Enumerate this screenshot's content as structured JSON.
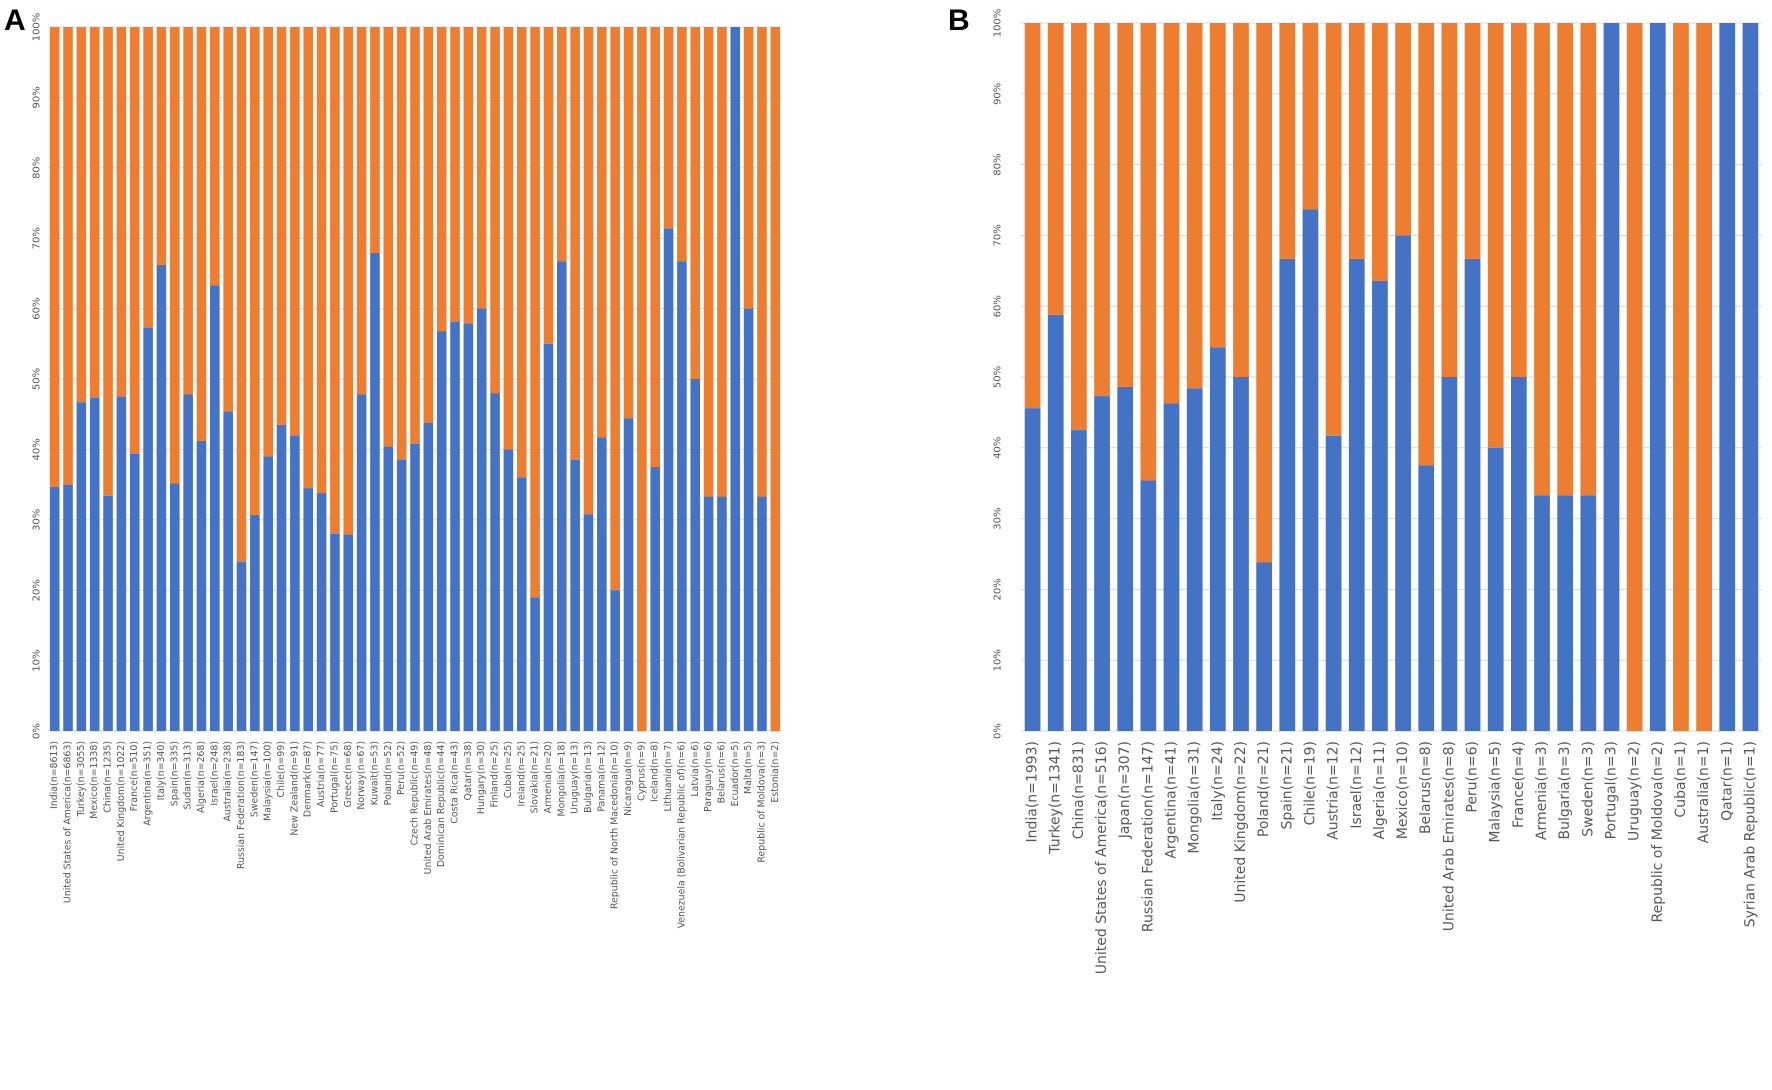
{
  "chart_data": [
    {
      "panel": "A",
      "type": "bar",
      "stacked": true,
      "percent_stacked": true,
      "ylim": [
        0,
        100
      ],
      "yticks": [
        "0%",
        "10%",
        "20%",
        "30%",
        "40%",
        "50%",
        "60%",
        "70%",
        "80%",
        "90%",
        "100%"
      ],
      "series_colors": [
        "#4472c4",
        "#ed7d31"
      ],
      "categories": [
        "India(n=8613)",
        "United States of America(n=6863)",
        "Turkey(n=3055)",
        "Mexico(n=1338)",
        "China(n=1235)",
        "United Kingdom(n=1022)",
        "France(n=510)",
        "Argentina(n=351)",
        "Italy(n=340)",
        "Spain(n=335)",
        "Sudan(n=313)",
        "Algeria(n=268)",
        "Israel(n=248)",
        "Australia(n=238)",
        "Russian Federation(n=183)",
        "Sweden(n=147)",
        "Malaysia(n=100)",
        "Chile(n=99)",
        "New Zealand(n=91)",
        "Denmark(n=87)",
        "Austria(n=77)",
        "Portugal(n=75)",
        "Greece(n=68)",
        "Norway(n=67)",
        "Kuwait(n=53)",
        "Poland(n=52)",
        "Peru(n=52)",
        "Czech Republic(n=49)",
        "United Arab Emirates(n=48)",
        "Dominican Republic(n=44)",
        "Costa Rica(n=43)",
        "Qatar(n=38)",
        "Hungary(n=30)",
        "Finland(n=25)",
        "Cuba(n=25)",
        "Ireland(n=25)",
        "Slovakia(n=21)",
        "Armenia(n=20)",
        "Mongolia(n=18)",
        "Uruguay(n=13)",
        "Bulgaria(n=13)",
        "Panama(n=12)",
        "Republic of North Macedonia(n=10)",
        "Nicaragua(n=9)",
        "Cyprus(n=9)",
        "Iceland(n=8)",
        "Lithuania(n=7)",
        "Venezuela (Bolivarian Republic of)(n=6)",
        "Latvia(n=6)",
        "Paraguay(n=6)",
        "Belarus(n=6)",
        "Ecuador(n=5)",
        "Malta(n=5)",
        "Republic of Moldova(n=3)",
        "Estonia(n=2)"
      ],
      "series": [
        {
          "name": "blue",
          "values": [
            34.7,
            35,
            46.7,
            47.3,
            33.4,
            47.5,
            39.4,
            57.3,
            66.2,
            35.2,
            47.8,
            41.2,
            63.3,
            45.4,
            24,
            30.7,
            39,
            43.5,
            41.9,
            34.5,
            33.8,
            28,
            27.9,
            47.8,
            67.9,
            40.4,
            38.5,
            40.8,
            43.8,
            56.8,
            58.1,
            57.9,
            60,
            48,
            40,
            36,
            19,
            55,
            66.7,
            38.5,
            30.8,
            41.7,
            20,
            44.4,
            0,
            37.5,
            71.4,
            66.7,
            50,
            33.3,
            33.3,
            100,
            60,
            33.3,
            0
          ]
        },
        {
          "name": "orange",
          "values": [
            65.3,
            65,
            53.3,
            52.7,
            66.6,
            52.5,
            60.6,
            42.7,
            33.8,
            64.8,
            52.2,
            58.8,
            36.7,
            54.6,
            76,
            69.3,
            61,
            56.5,
            58.1,
            65.5,
            66.2,
            72,
            72.1,
            52.2,
            32.1,
            59.6,
            61.5,
            59.2,
            56.2,
            43.2,
            41.9,
            42.1,
            40,
            52,
            60,
            64,
            81,
            45,
            33.3,
            61.5,
            69.2,
            58.3,
            80,
            55.6,
            100,
            62.5,
            28.6,
            33.3,
            50,
            66.7,
            66.7,
            0,
            40,
            66.7,
            100
          ]
        }
      ]
    },
    {
      "panel": "B",
      "type": "bar",
      "stacked": true,
      "percent_stacked": true,
      "ylim": [
        0,
        100
      ],
      "yticks": [
        "0%",
        "10%",
        "20%",
        "30%",
        "40%",
        "50%",
        "60%",
        "70%",
        "80%",
        "90%",
        "100%"
      ],
      "series_colors": [
        "#4472c4",
        "#ed7d31"
      ],
      "categories": [
        "India(n=1993)",
        "Turkey(n=1341)",
        "China(n=831)",
        "United States of America(n=516)",
        "Japan(n=307)",
        "Russian Federation(n=147)",
        "Argentina(n=41)",
        "Mongolia(n=31)",
        "Italy(n=24)",
        "United Kingdom(n=22)",
        "Poland(n=21)",
        "Spain(n=21)",
        "Chile(n=19)",
        "Austria(n=12)",
        "Israel(n=12)",
        "Algeria(n=11)",
        "Mexico(n=10)",
        "Belarus(n=8)",
        "United Arab Emirates(n=8)",
        "Peru(n=6)",
        "Malaysia(n=5)",
        "France(n=4)",
        "Armenia(n=3)",
        "Bulgaria(n=3)",
        "Sweden(n=3)",
        "Portugal(n=3)",
        "Uruguay(n=2)",
        "Republic of Moldova(n=2)",
        "Cuba(n=1)",
        "Australia(n=1)",
        "Qatar(n=1)",
        "Syrian Arab Republic(n=1)"
      ],
      "series": [
        {
          "name": "blue",
          "values": [
            45.6,
            58.8,
            42.5,
            47.3,
            48.6,
            35.4,
            46.3,
            48.4,
            54.2,
            50,
            23.8,
            66.7,
            73.7,
            41.7,
            66.7,
            63.6,
            70,
            37.5,
            50,
            66.7,
            40,
            50,
            33.3,
            33.3,
            33.3,
            100,
            0,
            100,
            0,
            0,
            100,
            100
          ]
        },
        {
          "name": "orange",
          "values": [
            54.4,
            41.2,
            57.5,
            52.7,
            51.4,
            64.6,
            53.7,
            51.6,
            45.8,
            50,
            76.2,
            33.3,
            26.3,
            58.3,
            33.3,
            36.4,
            30,
            62.5,
            50,
            33.3,
            60,
            50,
            66.7,
            66.7,
            66.7,
            0,
            100,
            0,
            100,
            100,
            0,
            0
          ]
        }
      ]
    }
  ]
}
